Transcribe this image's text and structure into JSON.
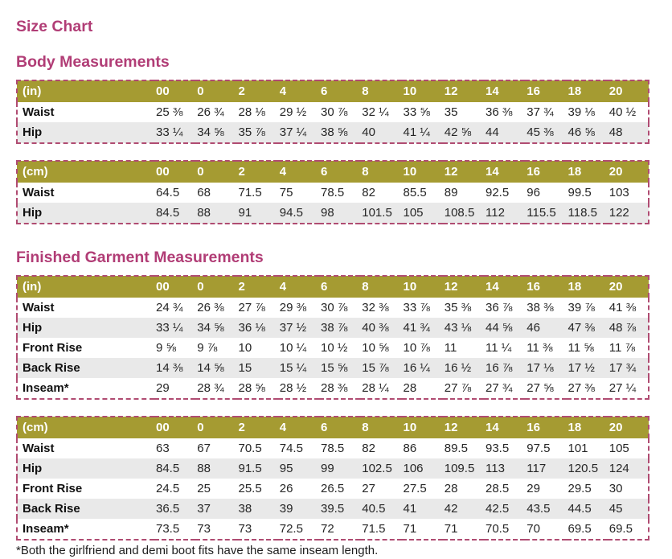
{
  "page": {
    "title": "Size Chart",
    "footnote": "*Both the girlfriend and demi boot fits have the same inseam length."
  },
  "colors": {
    "heading": "#b13d76",
    "table_header_bg": "#a59b32",
    "table_header_text": "#ffffff",
    "table_border": "#b04c72",
    "row_stripe": "#e9e9e9",
    "body_text": "#262626"
  },
  "sections": [
    {
      "heading": "Body Measurements",
      "tables": [
        {
          "unit": "(in)",
          "sizes": [
            "00",
            "0",
            "2",
            "4",
            "6",
            "8",
            "10",
            "12",
            "14",
            "16",
            "18",
            "20"
          ],
          "rows": [
            {
              "label": "Waist",
              "values": [
                "25 ⅜",
                "26 ¾",
                "28 ⅛",
                "29 ½",
                "30 ⅞",
                "32 ¼",
                "33 ⅝",
                "35",
                "36 ⅜",
                "37 ¾",
                "39 ⅛",
                "40 ½"
              ]
            },
            {
              "label": "Hip",
              "values": [
                "33 ¼",
                "34 ⅝",
                "35 ⅞",
                "37 ¼",
                "38 ⅝",
                "40",
                "41 ¼",
                "42 ⅝",
                "44",
                "45 ⅜",
                "46 ⅝",
                "48"
              ]
            }
          ]
        },
        {
          "unit": "(cm)",
          "sizes": [
            "00",
            "0",
            "2",
            "4",
            "6",
            "8",
            "10",
            "12",
            "14",
            "16",
            "18",
            "20"
          ],
          "rows": [
            {
              "label": "Waist",
              "values": [
                "64.5",
                "68",
                "71.5",
                "75",
                "78.5",
                "82",
                "85.5",
                "89",
                "92.5",
                "96",
                "99.5",
                "103"
              ]
            },
            {
              "label": "Hip",
              "values": [
                "84.5",
                "88",
                "91",
                "94.5",
                "98",
                "101.5",
                "105",
                "108.5",
                "112",
                "115.5",
                "118.5",
                "122"
              ]
            }
          ]
        }
      ]
    },
    {
      "heading": "Finished Garment Measurements",
      "tables": [
        {
          "unit": "(in)",
          "sizes": [
            "00",
            "0",
            "2",
            "4",
            "6",
            "8",
            "10",
            "12",
            "14",
            "16",
            "18",
            "20"
          ],
          "rows": [
            {
              "label": "Waist",
              "values": [
                "24 ¾",
                "26 ⅜",
                "27 ⅞",
                "29 ⅜",
                "30 ⅞",
                "32 ⅜",
                "33 ⅞",
                "35 ⅜",
                "36 ⅞",
                "38 ⅜",
                "39 ⅞",
                "41 ⅜"
              ]
            },
            {
              "label": "Hip",
              "values": [
                "33 ¼",
                "34 ⅝",
                "36 ⅛",
                "37 ½",
                "38 ⅞",
                "40 ⅜",
                "41 ¾",
                "43 ⅛",
                "44 ⅝",
                "46",
                "47 ⅜",
                "48 ⅞"
              ]
            },
            {
              "label": "Front Rise",
              "values": [
                "9 ⅝",
                "9 ⅞",
                "10",
                "10 ¼",
                "10 ½",
                "10 ⅝",
                "10 ⅞",
                "11",
                "11 ¼",
                "11 ⅜",
                "11 ⅝",
                "11 ⅞"
              ]
            },
            {
              "label": "Back Rise",
              "values": [
                "14 ⅜",
                "14 ⅝",
                "15",
                "15 ¼",
                "15 ⅝",
                "15 ⅞",
                "16 ¼",
                "16 ½",
                "16 ⅞",
                "17 ⅛",
                "17 ½",
                "17 ¾"
              ]
            },
            {
              "label": "Inseam*",
              "values": [
                "29",
                "28 ¾",
                "28 ⅝",
                "28 ½",
                "28 ⅜",
                "28 ¼",
                "28",
                "27 ⅞",
                "27 ¾",
                "27 ⅝",
                "27 ⅜",
                "27 ¼"
              ]
            }
          ]
        },
        {
          "unit": "(cm)",
          "sizes": [
            "00",
            "0",
            "2",
            "4",
            "6",
            "8",
            "10",
            "12",
            "14",
            "16",
            "18",
            "20"
          ],
          "rows": [
            {
              "label": "Waist",
              "values": [
                "63",
                "67",
                "70.5",
                "74.5",
                "78.5",
                "82",
                "86",
                "89.5",
                "93.5",
                "97.5",
                "101",
                "105"
              ]
            },
            {
              "label": "Hip",
              "values": [
                "84.5",
                "88",
                "91.5",
                "95",
                "99",
                "102.5",
                "106",
                "109.5",
                "113",
                "117",
                "120.5",
                "124"
              ]
            },
            {
              "label": "Front Rise",
              "values": [
                "24.5",
                "25",
                "25.5",
                "26",
                "26.5",
                "27",
                "27.5",
                "28",
                "28.5",
                "29",
                "29.5",
                "30"
              ]
            },
            {
              "label": "Back Rise",
              "values": [
                "36.5",
                "37",
                "38",
                "39",
                "39.5",
                "40.5",
                "41",
                "42",
                "42.5",
                "43.5",
                "44.5",
                "45"
              ]
            },
            {
              "label": "Inseam*",
              "values": [
                "73.5",
                "73",
                "73",
                "72.5",
                "72",
                "71.5",
                "71",
                "71",
                "70.5",
                "70",
                "69.5",
                "69.5"
              ]
            }
          ]
        }
      ]
    }
  ]
}
